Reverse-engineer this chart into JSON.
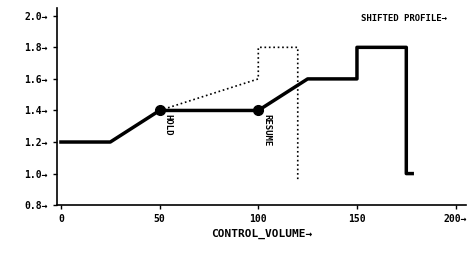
{
  "title": "",
  "xlabel": "CONTROL_VOLUME→",
  "ylabel": "",
  "xlim": [
    -2,
    205
  ],
  "ylim": [
    0.8,
    2.05
  ],
  "xticks": [
    0,
    50,
    100,
    150,
    200
  ],
  "yticks": [
    0.8,
    1.0,
    1.2,
    1.4,
    1.6,
    1.8,
    2.0
  ],
  "ytick_labels": [
    "0.8→",
    "1.0→",
    "1.2→",
    "1.4→",
    "1.6→",
    "1.8→",
    "2.0→"
  ],
  "xtick_labels": [
    "0",
    "50",
    "100",
    "150",
    "200→"
  ],
  "solid_line_x": [
    0,
    25,
    50,
    100,
    125,
    150,
    150,
    175,
    175,
    178
  ],
  "solid_line_y": [
    1.2,
    1.2,
    1.4,
    1.4,
    1.6,
    1.6,
    1.8,
    1.8,
    1.0,
    1.0
  ],
  "dotted_line_x": [
    50,
    100,
    100,
    120,
    120
  ],
  "dotted_line_y": [
    1.4,
    1.6,
    1.8,
    1.8,
    0.95
  ],
  "hold_point": [
    50,
    1.4
  ],
  "resume_point": [
    100,
    1.4
  ],
  "hold_label": "HOLD",
  "resume_label": "RESUME",
  "legend_label": "SHIFTED PROFILE→",
  "bg_color": "#ffffff",
  "line_color": "#000000",
  "dot_color": "#000000",
  "line_width": 2.5,
  "dot_size": 7,
  "font_family": "monospace"
}
